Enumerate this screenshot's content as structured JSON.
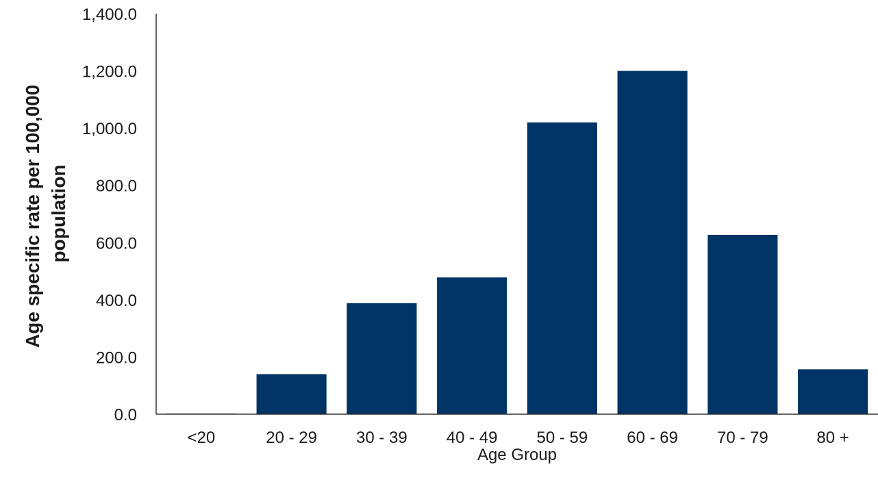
{
  "chart_data": {
    "type": "bar",
    "title": "",
    "xlabel": "Age Group",
    "ylabel_lines": [
      "Age specific rate per 100,000",
      "population"
    ],
    "categories": [
      "<20",
      "20 - 29",
      "30 - 39",
      "40 - 49",
      "50 - 59",
      "60 - 69",
      "70 - 79",
      "80 +"
    ],
    "values": [
      2.0,
      140.0,
      388.0,
      478.0,
      1020.0,
      1200.0,
      627.0,
      157.0
    ],
    "ylim": [
      0,
      1400
    ],
    "yticks": [
      0,
      200,
      400,
      600,
      800,
      1000,
      1200,
      1400
    ],
    "ytick_labels": [
      "0.0",
      "200.0",
      "400.0",
      "600.0",
      "800.0",
      "1,000.0",
      "1,200.0",
      "1,400.0"
    ],
    "grid": false,
    "legend": "none",
    "bar_color": "#003366",
    "axis_color": "#333333"
  }
}
